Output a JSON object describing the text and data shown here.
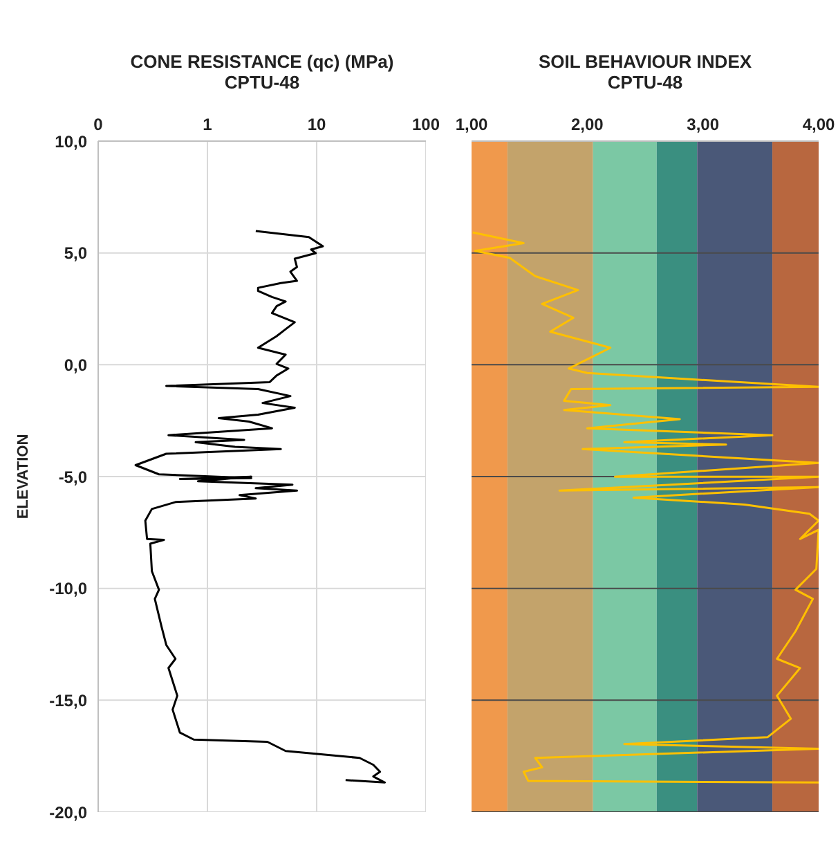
{
  "chart_data": [
    {
      "type": "line",
      "title": "CONE RESISTANCE (qc) (MPa)",
      "subtitle": "CPTU-48",
      "ylabel": "ELEVATION",
      "log": "x",
      "grid": true,
      "legend": false,
      "marker": "none",
      "xlim": [
        0.1,
        100
      ],
      "xticks": [
        {
          "value": 0.1,
          "label": "0"
        },
        1,
        10,
        100
      ],
      "ylim": [
        -20,
        10
      ],
      "yticks": [
        {
          "value": 10,
          "label": "10,0"
        },
        {
          "value": 5,
          "label": "5,0"
        },
        {
          "value": 0,
          "label": "0,0"
        },
        {
          "value": -5,
          "label": "-5,0"
        },
        {
          "value": -10,
          "label": "-10,0"
        },
        {
          "value": -15,
          "label": "-15,0"
        },
        {
          "value": -20,
          "label": "-20,0"
        }
      ],
      "series": [
        {
          "color": "#000000",
          "x": [
            2.77,
            8.47,
            11.4,
            8.9,
            9.8,
            6.3,
            6.6,
            5.75,
            6.6,
            4.7,
            2.91,
            2.91,
            3.9,
            5.2,
            4.3,
            3.9,
            6.3,
            5.2,
            4.3,
            2.91,
            5.2,
            4.3,
            5.5,
            4.3,
            3.7,
            0.42,
            2.91,
            5.75,
            3.2,
            6.3,
            2.91,
            1.27,
            2.4,
            3.9,
            0.44,
            2.17,
            0.78,
            1.79,
            4.7,
            0.42,
            0.22,
            0.36,
            2.52,
            0.56,
            2.52,
            0.82,
            6.0,
            2.77,
            6.6,
            1.97,
            2.77,
            0.51,
            0.31,
            0.27,
            0.28,
            0.4,
            0.3,
            0.31,
            0.36,
            0.33,
            0.38,
            0.42,
            0.51,
            0.44,
            0.53,
            0.48,
            0.56,
            0.75,
            3.54,
            5.2,
            24.7,
            33,
            38,
            33,
            42,
            18.4
          ],
          "values": [
            5.98,
            5.71,
            5.3,
            5.15,
            4.99,
            4.74,
            4.37,
            4.16,
            3.75,
            3.65,
            3.44,
            3.3,
            3.03,
            2.83,
            2.62,
            2.31,
            1.9,
            1.59,
            1.28,
            0.76,
            0.45,
            0.04,
            -0.17,
            -0.48,
            -0.78,
            -0.95,
            -1.09,
            -1.4,
            -1.71,
            -1.92,
            -2.23,
            -2.39,
            -2.54,
            -2.84,
            -3.15,
            -3.36,
            -3.46,
            -3.67,
            -3.77,
            -3.98,
            -4.49,
            -4.9,
            -5.07,
            -5.11,
            -5.01,
            -5.21,
            -5.36,
            -5.52,
            -5.63,
            -5.83,
            -5.98,
            -6.14,
            -6.45,
            -6.97,
            -7.79,
            -7.83,
            -8.0,
            -9.23,
            -10.06,
            -10.47,
            -11.71,
            -12.53,
            -13.15,
            -13.56,
            -14.8,
            -15.42,
            -16.45,
            -16.76,
            -16.86,
            -17.27,
            -17.58,
            -17.89,
            -18.2,
            -18.41,
            -18.68,
            -18.57
          ]
        }
      ]
    },
    {
      "type": "line",
      "title": "SOIL BEHAVIOUR INDEX",
      "subtitle": "CPTU-48",
      "grid": "y",
      "legend": false,
      "marker": "none",
      "tick_labels": "x",
      "xlim": [
        1,
        4
      ],
      "xticks": [
        {
          "value": 1,
          "label": "1,00"
        },
        {
          "value": 2,
          "label": "2,00"
        },
        {
          "value": 3,
          "label": "3,00"
        },
        {
          "value": 4,
          "label": "4,00"
        }
      ],
      "ylim": [
        -20,
        10
      ],
      "yticks": [
        10,
        5,
        0,
        -5,
        -10,
        -15,
        -20
      ],
      "bands": [
        {
          "axis": "x",
          "from": 1,
          "to": 1.31,
          "color": "#f0994c"
        },
        {
          "axis": "x",
          "from": 1.31,
          "to": 2.05,
          "color": "#c3a36b"
        },
        {
          "axis": "x",
          "from": 2.05,
          "to": 2.6,
          "color": "#7bc8a4"
        },
        {
          "axis": "x",
          "from": 2.6,
          "to": 2.95,
          "color": "#3a8f80"
        },
        {
          "axis": "x",
          "from": 2.95,
          "to": 3.6,
          "color": "#4a5878"
        },
        {
          "axis": "x",
          "from": 3.6,
          "to": 4,
          "color": "#b8673f"
        }
      ],
      "series": [
        {
          "color": "#ffc000",
          "x": [
            1.01,
            1.45,
            1.03,
            1.33,
            1.55,
            1.92,
            1.61,
            1.88,
            1.68,
            2.2,
            1.84,
            2.0,
            4.0,
            1.86,
            1.8,
            2.2,
            1.8,
            2.8,
            2.0,
            3.6,
            2.32,
            3.2,
            1.96,
            4.0,
            2.24,
            4.0,
            1.76,
            4.0,
            2.4,
            3.36,
            3.92,
            4.0,
            3.84,
            4.0,
            3.98,
            3.8,
            3.95,
            3.8,
            3.64,
            3.84,
            3.64,
            3.76,
            3.56,
            2.32,
            4.0,
            1.55,
            1.61,
            1.45,
            1.49,
            4.0
          ],
          "values": [
            5.92,
            5.44,
            5.09,
            4.78,
            3.96,
            3.34,
            2.72,
            2.1,
            1.48,
            0.76,
            -0.17,
            -0.37,
            -0.99,
            -1.09,
            -1.61,
            -1.81,
            -2.02,
            -2.43,
            -2.84,
            -3.15,
            -3.46,
            -3.57,
            -3.77,
            -4.39,
            -5.01,
            -5.01,
            -5.63,
            -5.47,
            -5.94,
            -6.25,
            -6.66,
            -6.97,
            -7.79,
            -7.38,
            -9.13,
            -10.06,
            -10.47,
            -11.92,
            -13.15,
            -13.56,
            -14.8,
            -15.83,
            -16.65,
            -16.96,
            -17.17,
            -17.58,
            -18.0,
            -18.2,
            -18.61,
            -18.68
          ]
        }
      ]
    }
  ]
}
